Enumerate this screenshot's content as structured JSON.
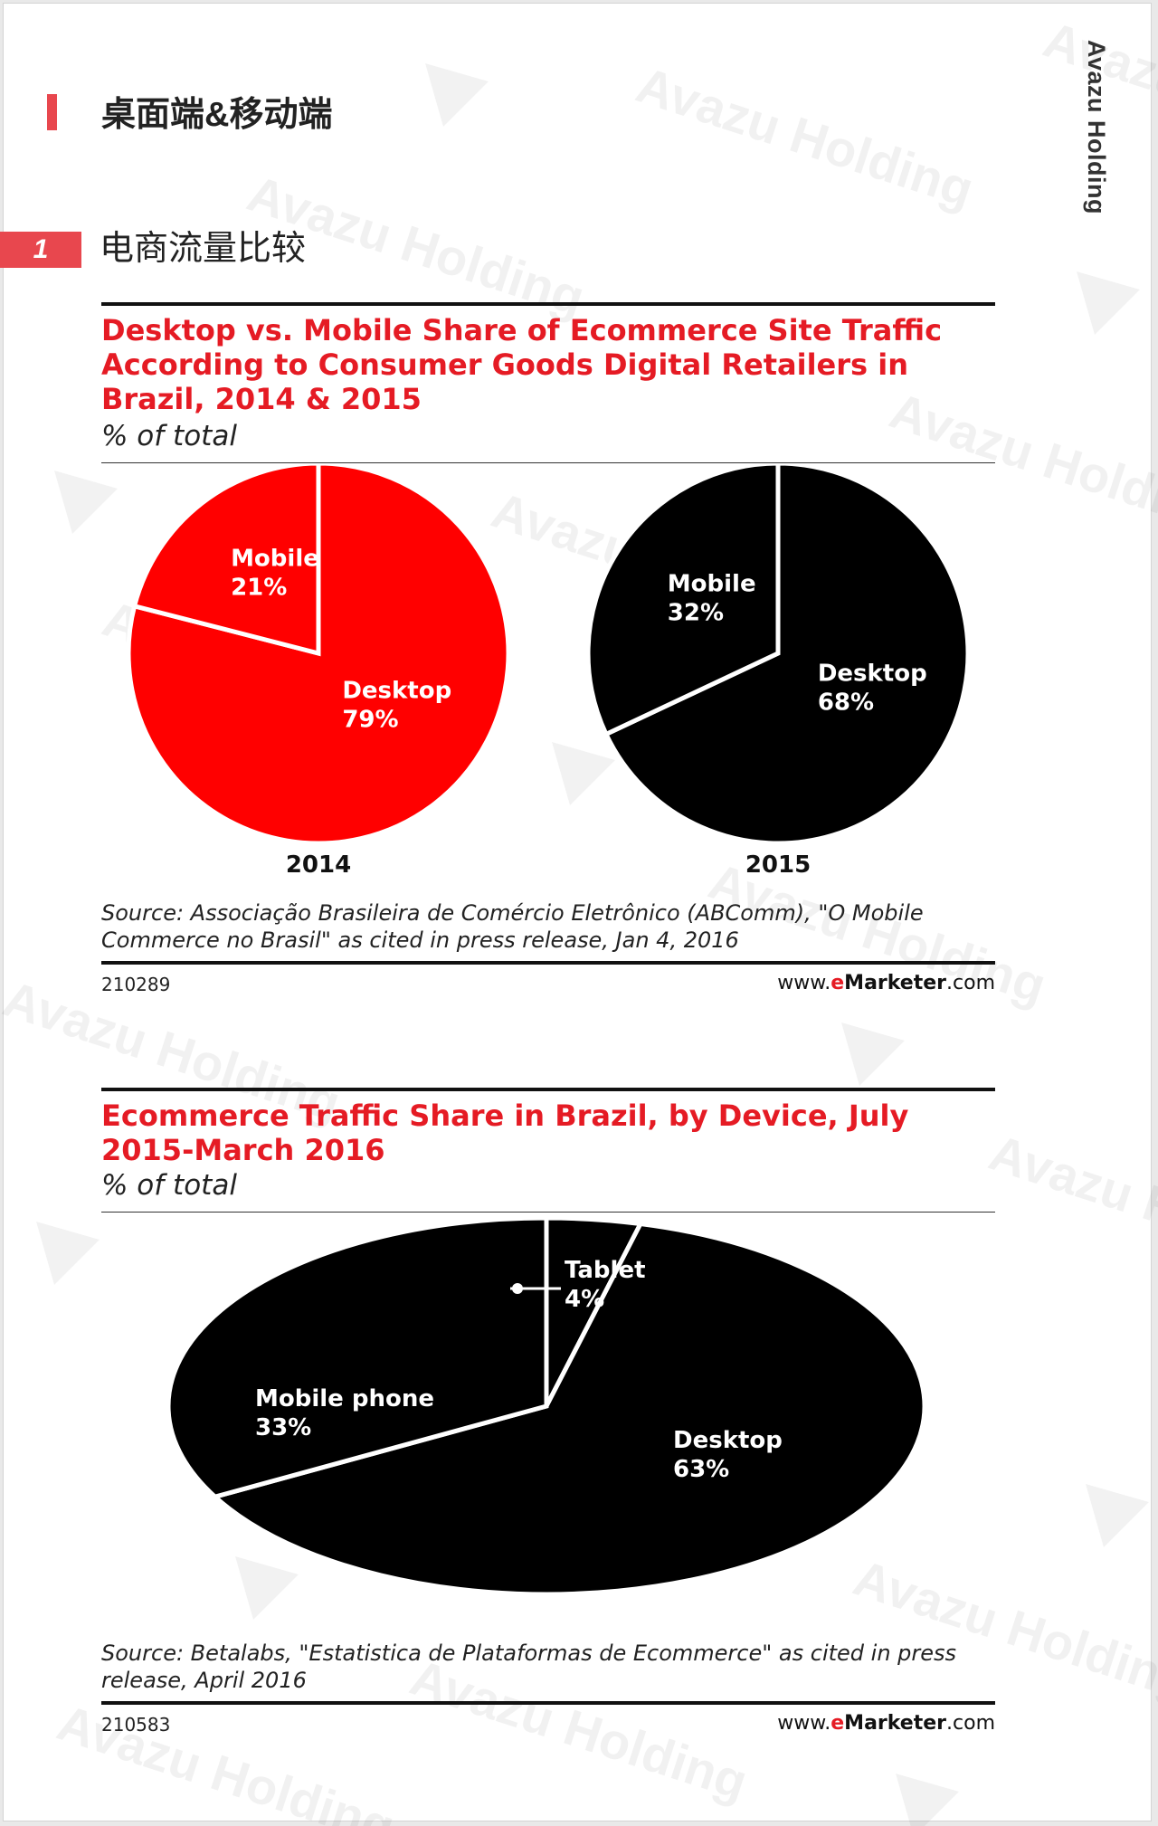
{
  "brand": "Avazu Holding",
  "section": {
    "title": "桌面端&移动端",
    "accent_color": "#e8474e"
  },
  "subsection": {
    "number": "1",
    "title": "电商流量比较"
  },
  "watermark_text": "Avazu Holding",
  "chart_data": [
    {
      "type": "pie",
      "title": "Desktop vs. Mobile Share of Ecommerce Site Traffic According to Consumer Goods Digital Retailers in Brazil, 2014 & 2015",
      "subtitle": "% of total",
      "pies": [
        {
          "label": "2014",
          "color": "#ff0000",
          "slices": [
            {
              "label": "Mobile",
              "value": 21,
              "display": "21%"
            },
            {
              "label": "Desktop",
              "value": 79,
              "display": "79%"
            }
          ]
        },
        {
          "label": "2015",
          "color": "#000000",
          "slices": [
            {
              "label": "Mobile",
              "value": 32,
              "display": "32%"
            },
            {
              "label": "Desktop",
              "value": 68,
              "display": "68%"
            }
          ]
        }
      ],
      "source": "Source: Associação Brasileira de Comércio Eletrônico (ABComm), \"O Mobile Commerce no Brasil\" as cited in press release, Jan 4, 2016",
      "chart_id": "210289",
      "credit": {
        "prefix": "www.",
        "e": "e",
        "mid": "Marketer",
        "suffix": ".com"
      }
    },
    {
      "type": "pie",
      "title": "Ecommerce Traffic Share in Brazil, by Device, July 2015-March 2016",
      "subtitle": "% of total",
      "color": "#000000",
      "slices": [
        {
          "label": "Tablet",
          "value": 4,
          "display": "4%"
        },
        {
          "label": "Desktop",
          "value": 63,
          "display": "63%"
        },
        {
          "label": "Mobile phone",
          "value": 33,
          "display": "33%"
        }
      ],
      "source": "Source: Betalabs, \"Estatistica de Plataformas de Ecommerce\" as cited in press release, April 2016",
      "chart_id": "210583",
      "credit": {
        "prefix": "www.",
        "e": "e",
        "mid": "Marketer",
        "suffix": ".com"
      }
    }
  ]
}
